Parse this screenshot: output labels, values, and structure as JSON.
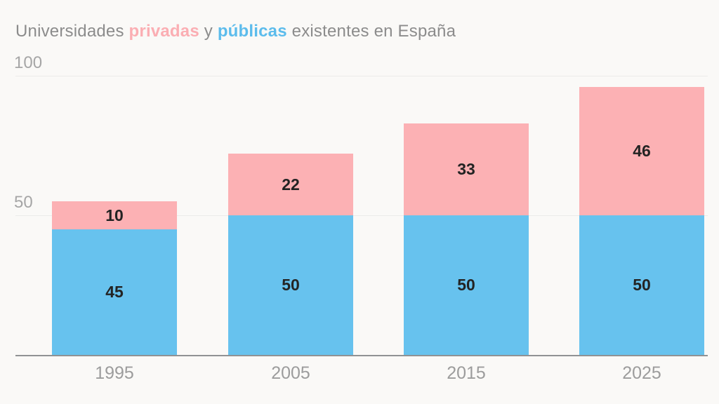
{
  "title": {
    "prefix": "Universidades ",
    "privadas": "privadas",
    "middle": " y ",
    "publicas": "públicas",
    "suffix": " existentes en España"
  },
  "colors": {
    "background": "#FAF9F7",
    "title_gray": "#8C8C8C",
    "title_privadas_pink": "#FBAEB3",
    "title_publicas_blue": "#5CBCEC",
    "bar_private_pink": "#FCB1B4",
    "bar_public_blue": "#67C2EE",
    "gridline": "#EBEBE9",
    "axis_line": "#909294",
    "y_tick_label": "#A6A6A6",
    "x_tick_label": "#9C9C9C",
    "value_label": "#232323"
  },
  "y_axis": {
    "ticks": [
      {
        "label": "100",
        "value": 100
      },
      {
        "label": "50",
        "value": 50
      }
    ]
  },
  "chart_data": {
    "type": "bar",
    "stacked": true,
    "title": "Universidades privadas y públicas existentes en España",
    "categories": [
      "1995",
      "2005",
      "2015",
      "2025"
    ],
    "series": [
      {
        "name": "públicas",
        "color_key": "bar_public_blue",
        "values": [
          45,
          50,
          50,
          50
        ]
      },
      {
        "name": "privadas",
        "color_key": "bar_private_pink",
        "values": [
          10,
          22,
          33,
          46
        ]
      }
    ],
    "totals": [
      55,
      72,
      83,
      96
    ],
    "xlabel": "",
    "ylabel": "",
    "ylim": [
      0,
      100
    ],
    "grid": true,
    "legend": "inline-in-title"
  }
}
